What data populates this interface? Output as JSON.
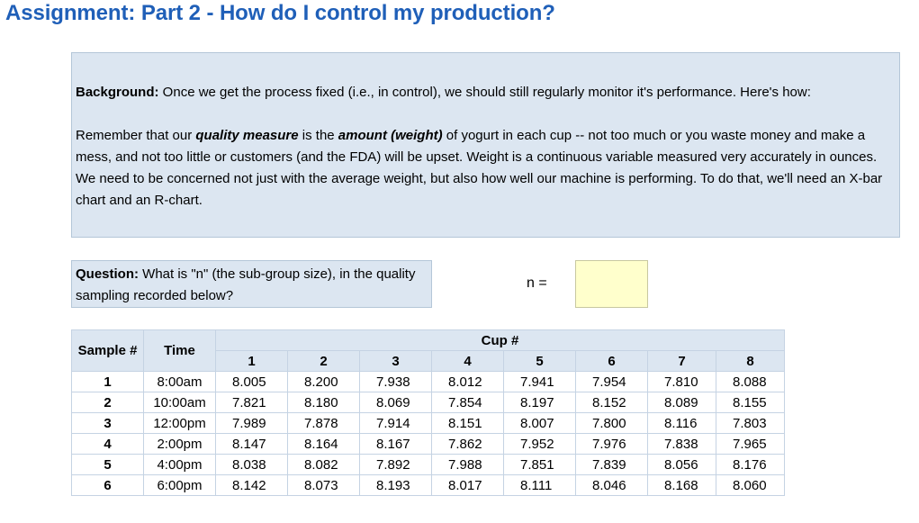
{
  "title": "Assignment: Part 2 - How do I control my production?",
  "background": {
    "label": "Background:",
    "line1": " Once we get the process fixed (i.e., in control), we should still regularly monitor it's performance.  Here's how:",
    "p_a": "Remember that our ",
    "p_b": "quality measure",
    "p_c": " is the ",
    "p_d": "amount (weight)",
    "p_e": " of yogurt in each cup -- not too much or you waste money and make a mess, and not too little or customers (and the FDA) will be upset.  Weight is a continuous variable measured very accurately in ounces.  We need to be concerned not just with the average weight, but also how well our machine is performing. To do that, we'll need an X-bar chart and an R-chart."
  },
  "question": {
    "label": "Question:",
    "text": " What is \"n\" (the sub-group size), in the quality sampling recorded below?"
  },
  "n_label": "n =",
  "n_value": "",
  "table": {
    "sample_header": "Sample #",
    "time_header": "Time",
    "cup_header": "Cup #",
    "cups": [
      "1",
      "2",
      "3",
      "4",
      "5",
      "6",
      "7",
      "8"
    ],
    "rows": [
      {
        "sample": "1",
        "time": "8:00am",
        "values": [
          "8.005",
          "8.200",
          "7.938",
          "8.012",
          "7.941",
          "7.954",
          "7.810",
          "8.088"
        ]
      },
      {
        "sample": "2",
        "time": "10:00am",
        "values": [
          "7.821",
          "8.180",
          "8.069",
          "7.854",
          "8.197",
          "8.152",
          "8.089",
          "8.155"
        ]
      },
      {
        "sample": "3",
        "time": "12:00pm",
        "values": [
          "7.989",
          "7.878",
          "7.914",
          "8.151",
          "8.007",
          "7.800",
          "8.116",
          "7.803"
        ]
      },
      {
        "sample": "4",
        "time": "2:00pm",
        "values": [
          "8.147",
          "8.164",
          "8.167",
          "7.862",
          "7.952",
          "7.976",
          "7.838",
          "7.965"
        ]
      },
      {
        "sample": "5",
        "time": "4:00pm",
        "values": [
          "8.038",
          "8.082",
          "7.892",
          "7.988",
          "7.851",
          "7.839",
          "8.056",
          "8.176"
        ]
      },
      {
        "sample": "6",
        "time": "6:00pm",
        "values": [
          "8.142",
          "8.073",
          "8.193",
          "8.017",
          "8.111",
          "8.046",
          "8.168",
          "8.060"
        ]
      }
    ]
  }
}
